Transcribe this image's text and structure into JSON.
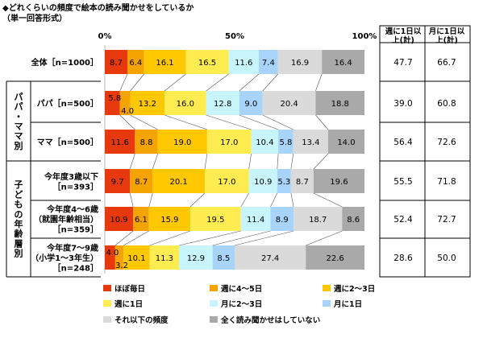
{
  "title": "◆どれくらいの頻度で絵本の読み聞かせをしているか",
  "subtitle": "（単一回答形式）",
  "colors": [
    "#e8390e",
    "#f5a300",
    "#ffc800",
    "#ffec50",
    "#c8f4fc",
    "#a8d4fc",
    "#dadada",
    "#a9a9a9"
  ],
  "chart_data": {
    "type": "bar",
    "stacked": "100%",
    "orientation": "horizontal",
    "axis_ticks": [
      "0%",
      "50%",
      "100%"
    ],
    "xlim": [
      0,
      100
    ],
    "groups": [
      {
        "label": "パパ・ママ別",
        "rows": [
          1,
          2
        ]
      },
      {
        "label": "子どもの年齢層別",
        "rows": [
          3,
          4,
          5
        ]
      }
    ],
    "rows": [
      {
        "label_lines": [
          "全体［n=1000］"
        ],
        "values": [
          8.7,
          6.4,
          16.1,
          16.5,
          11.6,
          7.4,
          16.9,
          16.4
        ]
      },
      {
        "label_lines": [
          "パパ［n=500］"
        ],
        "values": [
          5.8,
          4.0,
          13.2,
          16.0,
          12.8,
          9.0,
          20.4,
          18.8
        ]
      },
      {
        "label_lines": [
          "ママ［n=500］"
        ],
        "values": [
          11.6,
          8.8,
          19.0,
          17.0,
          10.4,
          5.8,
          13.4,
          14.0
        ]
      },
      {
        "label_lines": [
          "今年度3歳以下",
          "［n=393］"
        ],
        "values": [
          9.7,
          8.7,
          20.1,
          17.0,
          10.9,
          5.3,
          8.7,
          19.6
        ]
      },
      {
        "label_lines": [
          "今年度4～6歳",
          "（就園年齢相当）",
          "［n=359］"
        ],
        "values": [
          10.9,
          6.1,
          15.9,
          19.5,
          11.4,
          8.9,
          18.7,
          8.6
        ]
      },
      {
        "label_lines": [
          "今年度7～9歳",
          "（小学1～3年生）",
          "［n=248］"
        ],
        "values": [
          4.0,
          3.2,
          10.1,
          11.3,
          12.9,
          8.5,
          27.4,
          22.6
        ]
      }
    ],
    "series": [
      {
        "name": "ほぼ毎日"
      },
      {
        "name": "週に4～5日"
      },
      {
        "name": "週に2～3日"
      },
      {
        "name": "週に1日"
      },
      {
        "name": "月に2～3日"
      },
      {
        "name": "月に1日"
      },
      {
        "name": "それ以下の頻度"
      },
      {
        "name": "全く読み聞かせはしていない"
      }
    ],
    "summary_headers": [
      [
        "週に1日以",
        "上(計)"
      ],
      [
        "月に1日以",
        "上(計)"
      ]
    ],
    "summary": [
      [
        "47.7",
        "66.7"
      ],
      [
        "39.0",
        "60.8"
      ],
      [
        "56.4",
        "72.6"
      ],
      [
        "55.5",
        "71.8"
      ],
      [
        "52.4",
        "72.7"
      ],
      [
        "28.6",
        "50.0"
      ]
    ]
  }
}
